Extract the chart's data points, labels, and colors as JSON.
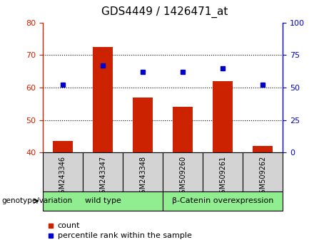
{
  "title": "GDS4449 / 1426471_at",
  "categories": [
    "GSM243346",
    "GSM243347",
    "GSM243348",
    "GSM509260",
    "GSM509261",
    "GSM509262"
  ],
  "bar_values": [
    43.5,
    72.5,
    57.0,
    54.0,
    62.0,
    42.0
  ],
  "bar_baseline": 40,
  "bar_color": "#cc2200",
  "percentile_values": [
    52,
    67,
    62,
    62,
    65,
    52
  ],
  "percentile_color": "#0000cc",
  "left_ylim": [
    40,
    80
  ],
  "left_yticks": [
    40,
    50,
    60,
    70,
    80
  ],
  "right_ylim": [
    0,
    100
  ],
  "right_yticks": [
    0,
    25,
    50,
    75,
    100
  ],
  "left_axis_color": "#cc2200",
  "right_axis_color": "#0000cc",
  "group1_label": "wild type",
  "group2_label": "β-Catenin overexpression",
  "group1_indices": [
    0,
    1,
    2
  ],
  "group2_indices": [
    3,
    4,
    5
  ],
  "group_color": "#90ee90",
  "annotation_label": "genotype/variation",
  "legend_count_label": "count",
  "legend_percentile_label": "percentile rank within the sample",
  "xlabel_area_color": "#d3d3d3",
  "title_fontsize": 11,
  "tick_fontsize": 8,
  "bar_width": 0.5,
  "grid_yticks": [
    50,
    60,
    70
  ]
}
